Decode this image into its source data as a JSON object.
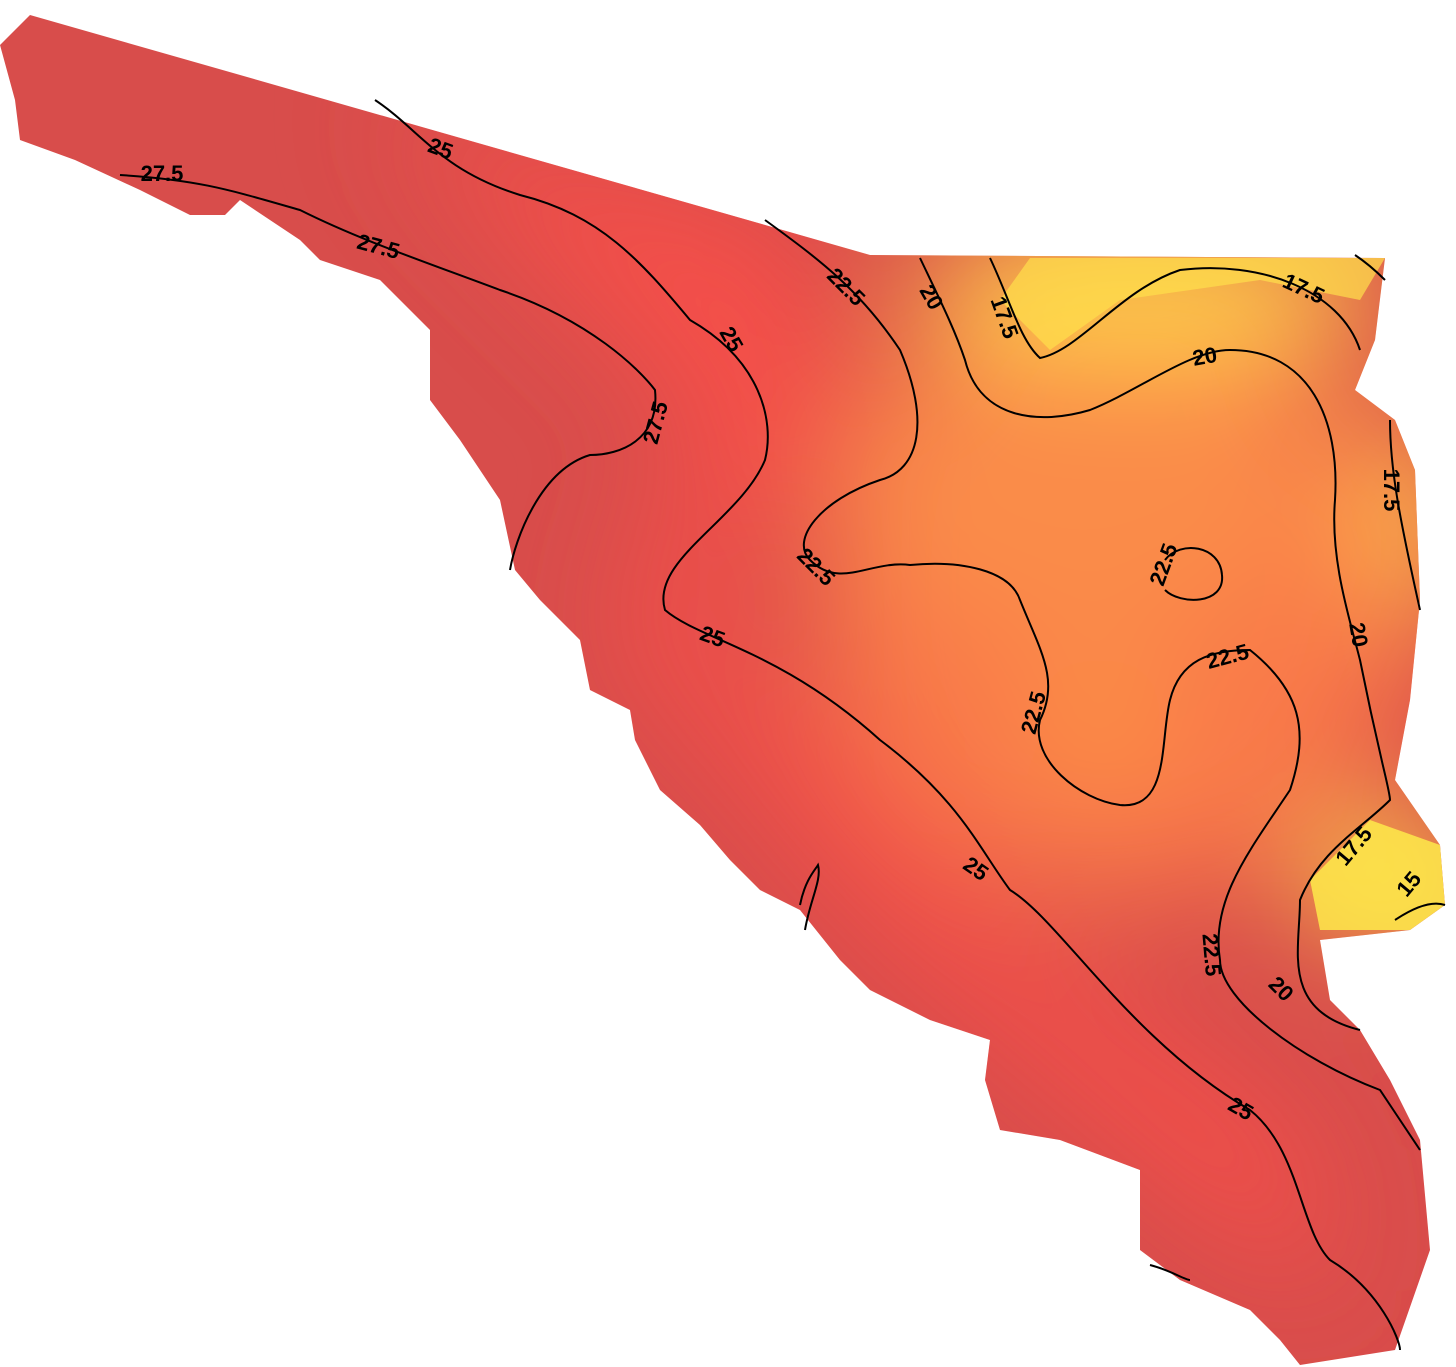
{
  "contour_labels": [
    "25",
    "27.5",
    "27.5",
    "25",
    "27.5",
    "22.5",
    "20",
    "17.5",
    "17.5",
    "20",
    "17.5",
    "22.5",
    "22.5",
    "20",
    "25",
    "22.5",
    "22.5",
    "17.5",
    "15",
    "25",
    "22.5",
    "20",
    "25"
  ]
}
